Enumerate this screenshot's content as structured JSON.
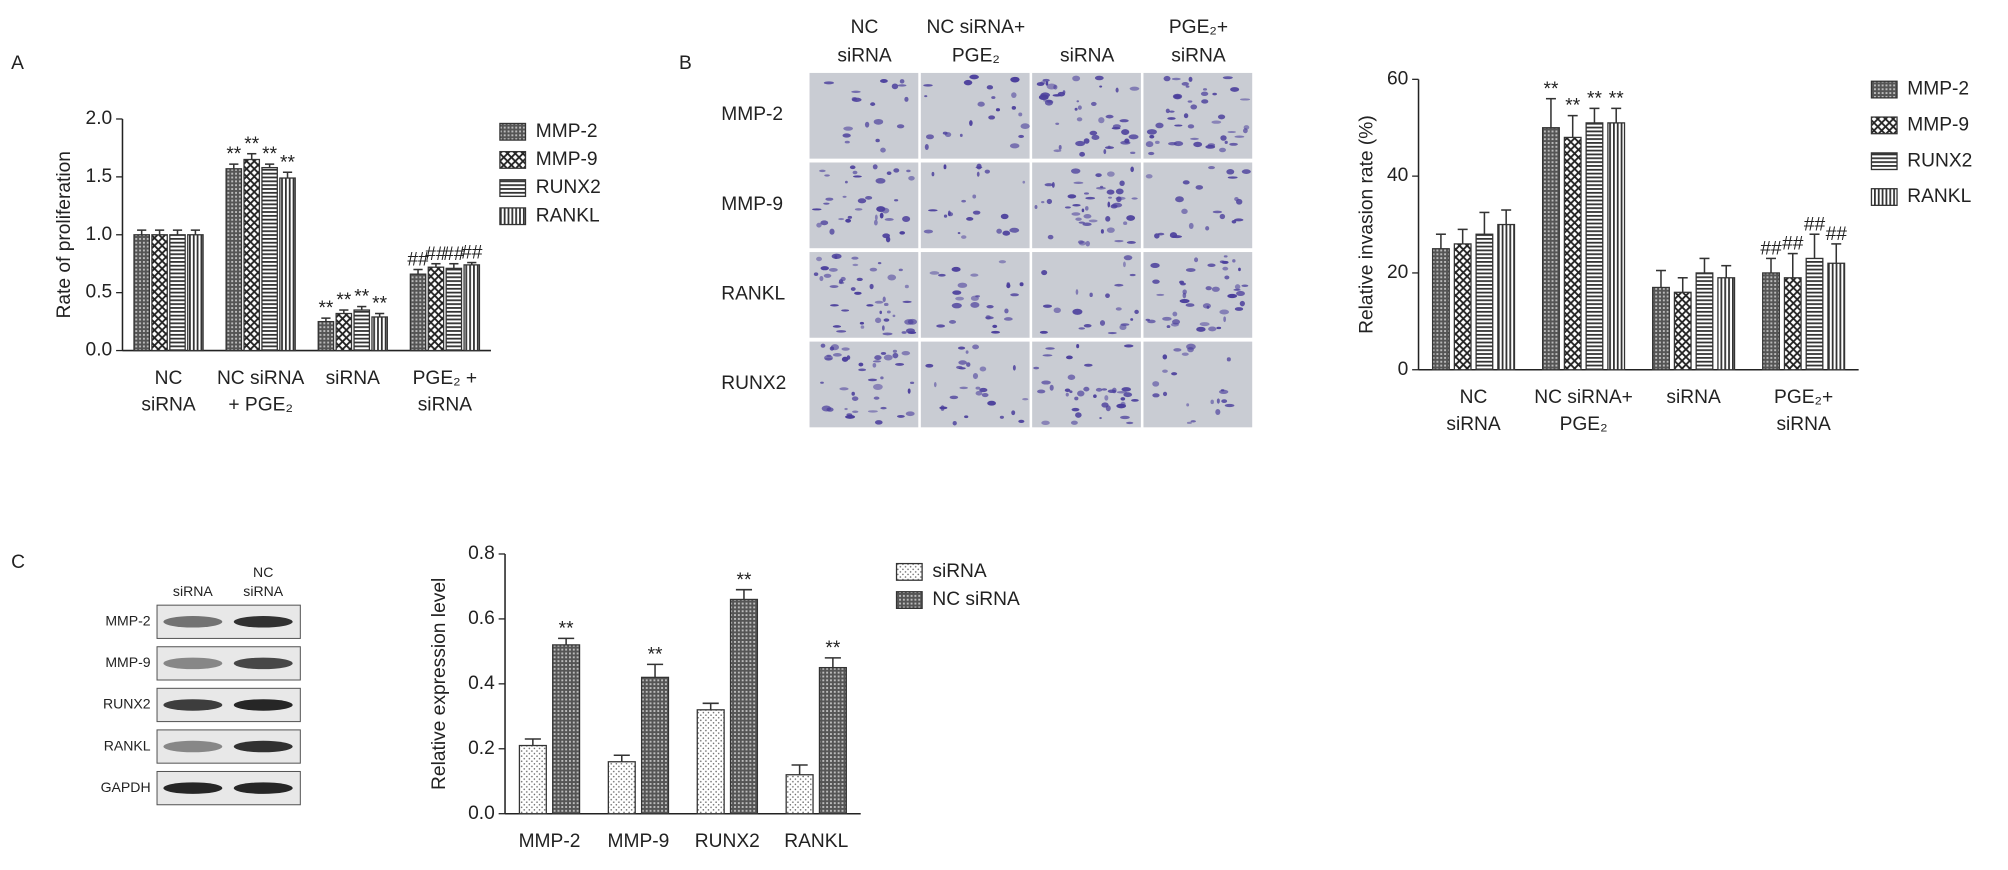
{
  "panels": [
    "A",
    "B",
    "C"
  ],
  "micrographs": {
    "columns": [
      [
        "NC",
        "siRNA"
      ],
      [
        "NC siRNA+",
        "PGE₂"
      ],
      [
        "siRNA"
      ],
      [
        "PGE₂+",
        "siRNA"
      ]
    ],
    "rows": [
      "MMP-2",
      "MMP-9",
      "RANKL",
      "RUNX2"
    ]
  },
  "western_blot": {
    "columns": [
      [
        "siRNA"
      ],
      [
        "NC",
        "siRNA"
      ]
    ],
    "rows": [
      "MMP-2",
      "MMP-9",
      "RUNX2",
      "RANKL",
      "GAPDH"
    ]
  },
  "chart_data": [
    {
      "type": "bar",
      "y_label": "Rate of proliferation",
      "categories": [
        [
          "NC",
          "siRNA"
        ],
        [
          "NC siRNA",
          "+ PGE₂"
        ],
        [
          "siRNA"
        ],
        [
          "PGE₂ +",
          "siRNA"
        ]
      ],
      "ylim": [
        0,
        2
      ],
      "yticks": [
        {
          "value": 0,
          "label": "0.0"
        },
        0.5,
        {
          "value": 1,
          "label": "1.0"
        },
        1.5,
        {
          "value": 2,
          "label": "2.0"
        }
      ],
      "series": [
        {
          "name": "MMP-2",
          "color": "#333333",
          "pattern": "checker",
          "values": [
            1.0,
            1.57,
            0.25,
            0.66
          ],
          "errors": [
            0.04,
            0.04,
            0.03,
            0.04
          ],
          "annotations": [
            null,
            "**",
            "**",
            "##"
          ]
        },
        {
          "name": "MMP-9",
          "color": "#333333",
          "pattern": "cross",
          "values": [
            1.0,
            1.65,
            0.32,
            0.72
          ],
          "errors": [
            0.04,
            0.05,
            0.03,
            0.03
          ],
          "annotations": [
            null,
            "**",
            "**",
            "##"
          ]
        },
        {
          "name": "RUNX2",
          "color": "#333333",
          "pattern": "hlines",
          "values": [
            1.0,
            1.58,
            0.35,
            0.71
          ],
          "errors": [
            0.04,
            0.03,
            0.03,
            0.04
          ],
          "annotations": [
            null,
            "**",
            "**",
            "##"
          ]
        },
        {
          "name": "RANKL",
          "color": "#333333",
          "pattern": "vlines",
          "values": [
            1.0,
            1.49,
            0.29,
            0.74
          ],
          "errors": [
            0.04,
            0.05,
            0.03,
            0.02
          ],
          "annotations": [
            null,
            "**",
            "**",
            "##"
          ]
        }
      ]
    },
    {
      "type": "bar",
      "y_label": "Relative invasion rate (%)",
      "categories": [
        [
          "NC",
          "siRNA"
        ],
        [
          "NC siRNA+",
          "PGE₂"
        ],
        [
          "siRNA"
        ],
        [
          "PGE₂+",
          "siRNA"
        ]
      ],
      "ylim": [
        0,
        60
      ],
      "yticks": [
        0,
        20,
        40,
        60
      ],
      "series": [
        {
          "name": "MMP-2",
          "color": "#333333",
          "pattern": "checker",
          "values": [
            25,
            50,
            17,
            20
          ],
          "errors": [
            3,
            6,
            3.5,
            3
          ],
          "annotations": [
            null,
            "**",
            null,
            "##"
          ]
        },
        {
          "name": "MMP-9",
          "color": "#333333",
          "pattern": "cross",
          "values": [
            26,
            48,
            16,
            19
          ],
          "errors": [
            3,
            4.5,
            3,
            5
          ],
          "annotations": [
            null,
            "**",
            null,
            "##"
          ]
        },
        {
          "name": "RUNX2",
          "color": "#333333",
          "pattern": "hlines",
          "values": [
            28,
            51,
            20,
            23
          ],
          "errors": [
            4.5,
            3,
            3,
            5
          ],
          "annotations": [
            null,
            "**",
            null,
            "##"
          ]
        },
        {
          "name": "RANKL",
          "color": "#333333",
          "pattern": "vlines",
          "values": [
            30,
            51,
            19,
            22
          ],
          "errors": [
            3,
            3,
            2.5,
            4
          ],
          "annotations": [
            null,
            "**",
            null,
            "##"
          ]
        }
      ]
    },
    {
      "type": "bar",
      "y_label": "Relative expression level",
      "categories": [
        "MMP-2",
        "MMP-9",
        "RUNX2",
        "RANKL"
      ],
      "ylim": [
        0,
        0.8
      ],
      "yticks": [
        {
          "value": 0,
          "label": "0.0"
        },
        0.2,
        0.4,
        0.6,
        0.8
      ],
      "series": [
        {
          "name": "siRNA",
          "color": "#333333",
          "pattern": "dots",
          "values": [
            0.21,
            0.16,
            0.32,
            0.12
          ],
          "errors": [
            0.02,
            0.02,
            0.02,
            0.03
          ],
          "annotations": [
            null,
            null,
            null,
            null
          ]
        },
        {
          "name": "NC siRNA",
          "color": "#333333",
          "pattern": "checker",
          "values": [
            0.52,
            0.42,
            0.66,
            0.45
          ],
          "errors": [
            0.02,
            0.04,
            0.03,
            0.03
          ],
          "annotations": [
            "**",
            "**",
            "**",
            "**"
          ]
        }
      ]
    }
  ]
}
